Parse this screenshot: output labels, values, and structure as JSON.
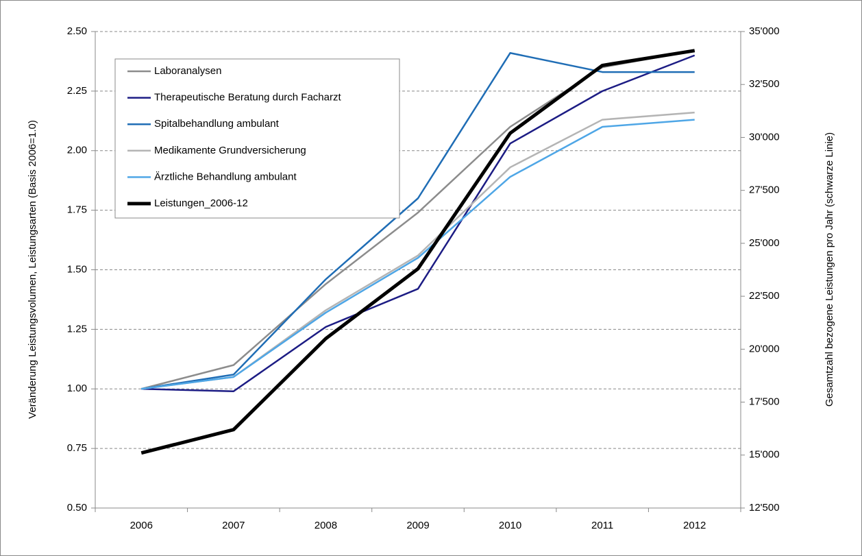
{
  "chart_data": {
    "type": "line",
    "y_label": "Veränderung Leistungsvolumen, Leistungsarten  (Basis 2006=1.0)",
    "y2_label": "Gesamtzahl bezogene Leistungen pro Jahr (schwarze Linie)",
    "categories": [
      "2006",
      "2007",
      "2008",
      "2009",
      "2010",
      "2011",
      "2012"
    ],
    "series": [
      {
        "name": "Laboranalysen",
        "color": "#8c8c8c",
        "values": [
          1.0,
          1.1,
          1.44,
          1.74,
          2.1,
          2.35,
          2.42
        ]
      },
      {
        "name": "Therapeutische Beratung durch Facharzt",
        "color": "#1c1c84",
        "values": [
          1.0,
          0.99,
          1.26,
          1.42,
          2.03,
          2.25,
          2.4
        ]
      },
      {
        "name": "Spitalbehandlung ambulant",
        "color": "#1f6db5",
        "values": [
          1.0,
          1.06,
          1.46,
          1.8,
          2.41,
          2.33,
          2.33
        ]
      },
      {
        "name": "Medikamente Grundversicherung",
        "color": "#b4b4b4",
        "values": [
          1.0,
          1.05,
          1.33,
          1.56,
          1.93,
          2.13,
          2.16
        ]
      },
      {
        "name": "Ärztliche Behandlung ambulant",
        "color": "#4ea6e6",
        "values": [
          1.0,
          1.05,
          1.32,
          1.55,
          1.89,
          2.1,
          2.13
        ]
      },
      {
        "name": "Leistungen_2006-12",
        "color": "#000000",
        "axis": "y2",
        "values": [
          15100,
          16200,
          20500,
          23800,
          30200,
          33400,
          34100
        ]
      }
    ],
    "ylim": [
      0.5,
      2.5
    ],
    "yticks": [
      {
        "value": 0.5,
        "label": "0.50"
      },
      {
        "value": 0.75,
        "label": "0.75"
      },
      {
        "value": 1.0,
        "label": "1.00"
      },
      {
        "value": 1.25,
        "label": "1.25"
      },
      {
        "value": 1.5,
        "label": "1.50"
      },
      {
        "value": 1.75,
        "label": "1.75"
      },
      {
        "value": 2.0,
        "label": "2.00"
      },
      {
        "value": 2.25,
        "label": "2.25"
      },
      {
        "value": 2.5,
        "label": "2.50"
      }
    ],
    "y2lim": [
      12500,
      35000
    ],
    "y2ticks": [
      {
        "value": 12500,
        "label": "12'500"
      },
      {
        "value": 15000,
        "label": "15'000"
      },
      {
        "value": 17500,
        "label": "17'500"
      },
      {
        "value": 20000,
        "label": "20'000"
      },
      {
        "value": 22500,
        "label": "22'500"
      },
      {
        "value": 25000,
        "label": "25'000"
      },
      {
        "value": 27500,
        "label": "27'500"
      },
      {
        "value": 30000,
        "label": "30'000"
      },
      {
        "value": 32500,
        "label": "32'500"
      },
      {
        "value": 35000,
        "label": "35'000"
      }
    ],
    "grid": true,
    "legend": "upper left"
  }
}
